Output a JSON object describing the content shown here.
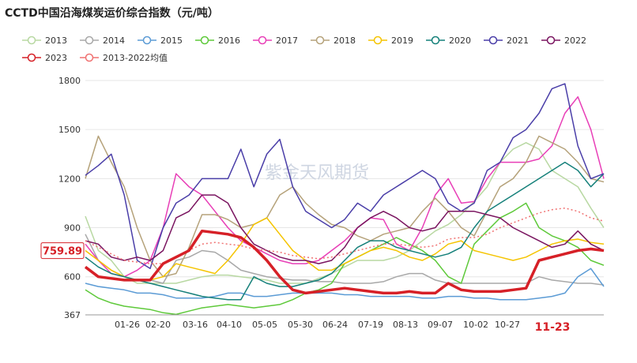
{
  "chart_data": {
    "type": "line",
    "title": "CCTD中国沿海煤炭运价综合指数（元/吨）",
    "watermark": "紫金天风期货",
    "ylim": [
      367,
      1800
    ],
    "yticks": [
      367,
      600,
      900,
      1200,
      1500,
      1800
    ],
    "xticks": [
      "01-26",
      "02-20",
      "03-16",
      "04-10",
      "05-05",
      "05-30",
      "06-24",
      "07-19",
      "08-13",
      "09-07",
      "10-02",
      "10-27"
    ],
    "highlight_xtick": "11-23",
    "current_value_label": "759.89",
    "grid": "horizontal",
    "legend_position": "top",
    "series": [
      {
        "name": "2013",
        "color": "#b8d8a2",
        "width": 1.5,
        "values": [
          970,
          760,
          700,
          600,
          560,
          560,
          560,
          560,
          580,
          600,
          610,
          610,
          600,
          590,
          580,
          560,
          560,
          560,
          590,
          620,
          660,
          700,
          700,
          700,
          720,
          760,
          820,
          880,
          920,
          980,
          1060,
          1150,
          1300,
          1380,
          1420,
          1380,
          1250,
          1200,
          1150,
          1020,
          900
        ]
      },
      {
        "name": "2014",
        "color": "#a8a8a8",
        "width": 1.5,
        "values": [
          860,
          700,
          640,
          600,
          580,
          580,
          560,
          700,
          720,
          760,
          750,
          700,
          640,
          620,
          600,
          590,
          580,
          580,
          570,
          570,
          560,
          560,
          560,
          570,
          600,
          620,
          620,
          580,
          560,
          560,
          560,
          560,
          560,
          560,
          560,
          600,
          580,
          570,
          560,
          560,
          550
        ]
      },
      {
        "name": "2015",
        "color": "#5b9bd5",
        "width": 1.5,
        "values": [
          560,
          540,
          530,
          520,
          500,
          500,
          490,
          470,
          470,
          470,
          480,
          500,
          500,
          480,
          480,
          490,
          500,
          500,
          500,
          500,
          490,
          490,
          480,
          480,
          480,
          480,
          470,
          470,
          480,
          480,
          470,
          470,
          460,
          460,
          460,
          470,
          480,
          500,
          600,
          650,
          540
        ]
      },
      {
        "name": "2016",
        "color": "#5ec93a",
        "width": 1.5,
        "values": [
          520,
          470,
          440,
          420,
          410,
          400,
          380,
          370,
          390,
          410,
          420,
          430,
          420,
          410,
          420,
          430,
          460,
          500,
          520,
          560,
          680,
          720,
          760,
          800,
          840,
          800,
          760,
          700,
          600,
          560,
          800,
          880,
          960,
          1000,
          1050,
          900,
          850,
          820,
          780,
          700,
          670
        ]
      },
      {
        "name": "2017",
        "color": "#e83fb7",
        "width": 1.5,
        "values": [
          800,
          700,
          620,
          600,
          640,
          700,
          900,
          1230,
          1150,
          1100,
          1000,
          900,
          820,
          780,
          740,
          700,
          680,
          680,
          700,
          760,
          820,
          900,
          960,
          950,
          800,
          760,
          900,
          1100,
          1200,
          1050,
          1060,
          1200,
          1300,
          1300,
          1300,
          1320,
          1400,
          1600,
          1700,
          1500,
          1200
        ]
      },
      {
        "name": "2018",
        "color": "#b5a27a",
        "width": 1.5,
        "values": [
          1200,
          1460,
          1300,
          1150,
          900,
          700,
          600,
          620,
          780,
          980,
          980,
          950,
          900,
          920,
          960,
          1100,
          1150,
          1050,
          980,
          920,
          900,
          850,
          820,
          860,
          880,
          900,
          1000,
          1080,
          1000,
          900,
          850,
          1000,
          1150,
          1200,
          1300,
          1460,
          1420,
          1380,
          1300,
          1200,
          1180
        ]
      },
      {
        "name": "2019",
        "color": "#f5c400",
        "width": 1.5,
        "values": [
          760,
          700,
          640,
          600,
          580,
          580,
          600,
          680,
          660,
          640,
          620,
          700,
          800,
          920,
          960,
          860,
          760,
          700,
          640,
          640,
          680,
          720,
          760,
          780,
          760,
          720,
          700,
          740,
          800,
          820,
          760,
          740,
          720,
          700,
          720,
          760,
          800,
          820,
          830,
          810,
          800
        ]
      },
      {
        "name": "2020",
        "color": "#15807a",
        "width": 1.5,
        "values": [
          720,
          660,
          620,
          600,
          580,
          560,
          540,
          520,
          500,
          480,
          470,
          460,
          460,
          600,
          560,
          540,
          540,
          560,
          580,
          620,
          700,
          780,
          820,
          820,
          780,
          760,
          740,
          720,
          740,
          780,
          900,
          1000,
          1050,
          1100,
          1150,
          1200,
          1250,
          1300,
          1250,
          1150,
          1230
        ]
      },
      {
        "name": "2021",
        "color": "#4a3ea8",
        "width": 1.5,
        "values": [
          1220,
          1280,
          1350,
          1100,
          700,
          650,
          900,
          1050,
          1100,
          1200,
          1200,
          1200,
          1380,
          1150,
          1350,
          1440,
          1150,
          1000,
          950,
          900,
          950,
          1050,
          1000,
          1100,
          1150,
          1200,
          1250,
          1200,
          1050,
          1000,
          1050,
          1250,
          1300,
          1450,
          1500,
          1600,
          1750,
          1780,
          1400,
          1200,
          1230
        ]
      },
      {
        "name": "2022",
        "color": "#7a1560",
        "width": 1.5,
        "values": [
          820,
          800,
          720,
          700,
          720,
          700,
          760,
          960,
          1000,
          1100,
          1100,
          1050,
          900,
          800,
          760,
          720,
          700,
          700,
          680,
          700,
          780,
          900,
          960,
          1000,
          960,
          900,
          880,
          900,
          1000,
          1000,
          1000,
          980,
          960,
          900,
          860,
          820,
          780,
          800,
          880,
          800,
          760
        ]
      },
      {
        "name": "2023",
        "color": "#d62027",
        "width": 3.5,
        "values": [
          660,
          600,
          590,
          580,
          580,
          580,
          680,
          720,
          760,
          880,
          870,
          860,
          840,
          780,
          700,
          600,
          520,
          500,
          510,
          520,
          530,
          520,
          510,
          500,
          500,
          510,
          500,
          500,
          560,
          520,
          510,
          510,
          510,
          520,
          530,
          700,
          720,
          740,
          760,
          770,
          760
        ]
      },
      {
        "name": "2013-2022均值",
        "color": "#f07272",
        "width": 1.5,
        "dashed": true,
        "values": [
          820,
          780,
          740,
          700,
          690,
          680,
          680,
          720,
          760,
          800,
          810,
          800,
          790,
          770,
          760,
          750,
          730,
          720,
          710,
          720,
          740,
          760,
          780,
          800,
          800,
          790,
          780,
          790,
          830,
          840,
          840,
          860,
          900,
          930,
          960,
          990,
          1010,
          1020,
          1000,
          960,
          940
        ]
      }
    ]
  }
}
